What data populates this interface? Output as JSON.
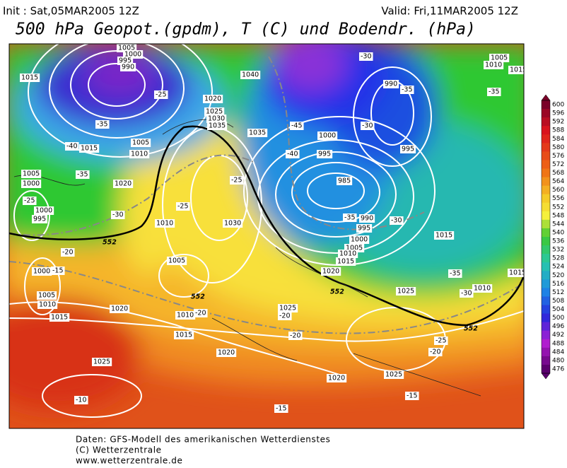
{
  "header": {
    "init": "Init : Sat,05MAR2005 12Z",
    "valid": "Valid: Fri,11MAR2005 12Z",
    "title": "500 hPa Geopot.(gpdm), T (C) und Bodendr. (hPa)"
  },
  "colorbar": {
    "ticks": [
      "600",
      "596",
      "592",
      "588",
      "584",
      "580",
      "576",
      "572",
      "568",
      "564",
      "560",
      "556",
      "552",
      "548",
      "544",
      "540",
      "536",
      "532",
      "528",
      "524",
      "520",
      "516",
      "512",
      "508",
      "504",
      "500",
      "496",
      "492",
      "488",
      "484",
      "480",
      "476"
    ]
  },
  "map": {
    "isobar_labels": [
      "1005",
      "1000",
      "995",
      "990",
      "1015",
      "1040",
      "1020",
      "1025",
      "1030",
      "1035",
      "1035",
      "1005",
      "1015",
      "1010",
      "1005",
      "1000",
      "1000",
      "995",
      "1020",
      "1010",
      "1030",
      "1005",
      "1000",
      "1005",
      "1010",
      "1015",
      "1020",
      "1025",
      "1010",
      "1015",
      "1020",
      "1025",
      "1020",
      "1025",
      "1000",
      "995",
      "985",
      "990",
      "995",
      "1000",
      "1005",
      "1010",
      "1015",
      "1020",
      "1025",
      "990",
      "995",
      "1005",
      "1010",
      "1015",
      "1015",
      "1015",
      "1010"
    ],
    "temperature_labels": [
      "-25",
      "-35",
      "-40",
      "-35",
      "-25",
      "-30",
      "-20",
      "-15",
      "-25",
      "-25",
      "-45",
      "-40",
      "-35",
      "-30",
      "-30",
      "-35",
      "-30",
      "-35",
      "-35",
      "-30",
      "-20",
      "-20",
      "-20",
      "-25",
      "-20",
      "-15",
      "-15",
      "-10"
    ],
    "thickness_labels": [
      "552",
      "552",
      "552",
      "552"
    ]
  },
  "footer": {
    "line1": "Daten: GFS-Modell des amerikanischen Wetterdienstes",
    "line2": "(C) Wetterzentrale",
    "line3": "www.wetterzentrale.de"
  }
}
